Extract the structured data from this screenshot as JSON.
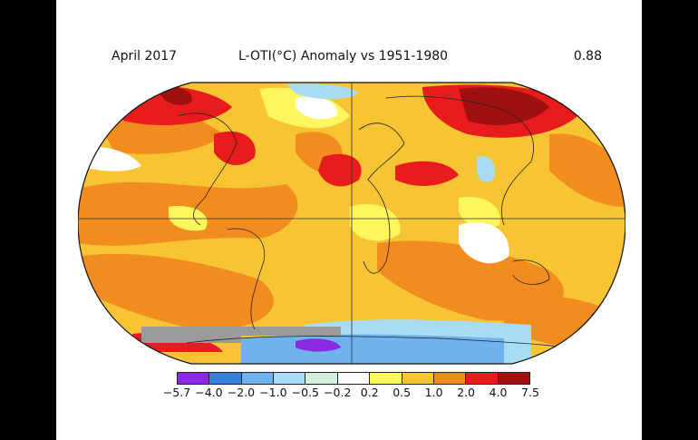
{
  "header": {
    "date": "April 2017",
    "title": "L-OTI(°C) Anomaly vs 1951-1980",
    "global_mean": "0.88"
  },
  "legend": {
    "ticks": [
      "−5.7",
      "−4.0",
      "−2.0",
      "−1.0",
      "−0.5",
      "−0.2",
      "0.2",
      "0.5",
      "1.0",
      "2.0",
      "4.0",
      "7.5"
    ],
    "colors": [
      "#8a2be2",
      "#3a7fe0",
      "#6fb3ee",
      "#a8dcf5",
      "#d2f0dc",
      "#ffffff",
      "#fdf65c",
      "#f7c433",
      "#f28c1e",
      "#e81c1c",
      "#a01010"
    ]
  },
  "map": {
    "projection": "robinson",
    "base_color": "#f7c433",
    "ocean_pattern": "anomaly"
  }
}
